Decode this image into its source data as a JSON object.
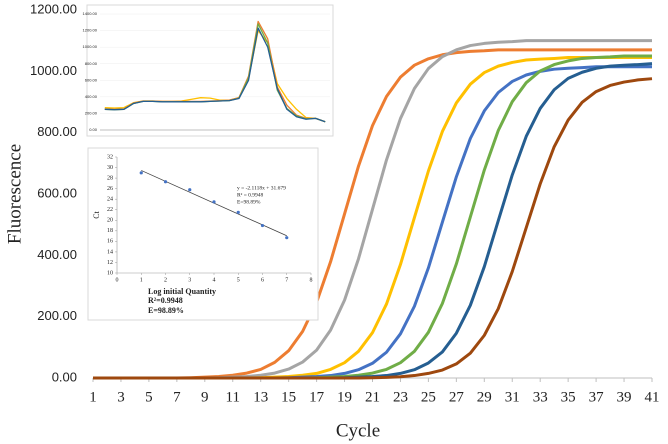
{
  "chart_data": [
    {
      "type": "line",
      "xlabel": "Cycle",
      "ylabel": "Fluorescence",
      "x": [
        1,
        2,
        3,
        4,
        5,
        6,
        7,
        8,
        9,
        10,
        11,
        12,
        13,
        14,
        15,
        16,
        17,
        18,
        19,
        20,
        21,
        22,
        23,
        24,
        25,
        26,
        27,
        28,
        29,
        30,
        31,
        32,
        33,
        34,
        35,
        36,
        37,
        38,
        39,
        40,
        41
      ],
      "xlim": [
        1,
        41
      ],
      "xticks": [
        1,
        3,
        5,
        7,
        9,
        11,
        13,
        15,
        17,
        19,
        21,
        23,
        25,
        27,
        29,
        31,
        33,
        35,
        37,
        39,
        41
      ],
      "ylim": [
        0,
        1200
      ],
      "yticks": [
        {
          "value": 0,
          "label": "0.00"
        },
        {
          "value": 200,
          "label": "200.00"
        },
        {
          "value": 400,
          "label": "400.00"
        },
        {
          "value": 600,
          "label": "600.00"
        },
        {
          "value": 800,
          "label": "800.00"
        },
        {
          "value": 1000,
          "label": "1000.00"
        },
        {
          "value": 1200,
          "label": "1200.00"
        }
      ],
      "series": [
        {
          "color": "#ed7d31",
          "values": [
            0,
            0,
            0,
            0,
            0,
            0,
            0,
            1,
            3,
            5,
            9,
            16,
            28,
            51,
            89,
            152,
            247,
            379,
            535,
            691,
            823,
            918,
            981,
            1020,
            1041,
            1054,
            1061,
            1065,
            1067,
            1070,
            1070,
            1070,
            1070,
            1070,
            1070,
            1070,
            1070,
            1070,
            1070,
            1070,
            1070
          ]
        },
        {
          "color": "#a5a5a5",
          "values": [
            0,
            0,
            0,
            0,
            0,
            0,
            0,
            0,
            0,
            1,
            3,
            5,
            9,
            16,
            29,
            52,
            91,
            156,
            254,
            389,
            550,
            711,
            846,
            944,
            1009,
            1048,
            1070,
            1084,
            1091,
            1095,
            1097,
            1100,
            1100,
            1100,
            1100,
            1100,
            1100,
            1100,
            1100,
            1100,
            1100
          ]
        },
        {
          "color": "#ffc000",
          "values": [
            0,
            0,
            0,
            0,
            0,
            0,
            0,
            0,
            0,
            0,
            0,
            0,
            1,
            3,
            5,
            9,
            15,
            28,
            50,
            87,
            148,
            241,
            370,
            523,
            675,
            804,
            897,
            958,
            996,
            1017,
            1029,
            1037,
            1040,
            1042,
            1045,
            1045,
            1045,
            1045,
            1045,
            1045,
            1045
          ]
        },
        {
          "color": "#4472c4",
          "values": [
            0,
            0,
            0,
            0,
            0,
            0,
            0,
            0,
            0,
            0,
            0,
            0,
            0,
            0,
            1,
            3,
            5,
            8,
            15,
            27,
            48,
            84,
            144,
            234,
            359,
            508,
            656,
            781,
            871,
            931,
            967,
            988,
            1000,
            1007,
            1010,
            1012,
            1015,
            1015,
            1015,
            1015,
            1015
          ]
        },
        {
          "color": "#70ad47",
          "values": [
            0,
            0,
            0,
            0,
            0,
            0,
            0,
            0,
            0,
            0,
            0,
            0,
            0,
            0,
            0,
            0,
            1,
            3,
            5,
            9,
            16,
            28,
            50,
            87,
            149,
            243,
            372,
            525,
            678,
            807,
            901,
            963,
            1001,
            1022,
            1034,
            1042,
            1045,
            1047,
            1050,
            1050,
            1050
          ]
        },
        {
          "color": "#255e91",
          "values": [
            0,
            0,
            0,
            0,
            0,
            0,
            0,
            0,
            0,
            0,
            0,
            0,
            0,
            0,
            0,
            0,
            0,
            0,
            1,
            3,
            5,
            8,
            15,
            27,
            49,
            85,
            146,
            237,
            363,
            513,
            662,
            788,
            879,
            940,
            977,
            997,
            1010,
            1017,
            1020,
            1022,
            1025
          ]
        },
        {
          "color": "#9e480e",
          "values": [
            0,
            0,
            0,
            0,
            0,
            0,
            0,
            0,
            0,
            0,
            0,
            0,
            0,
            0,
            0,
            0,
            0,
            0,
            0,
            0,
            1,
            2,
            4,
            8,
            15,
            26,
            46,
            81,
            139,
            226,
            347,
            490,
            633,
            754,
            841,
            899,
            934,
            954,
            965,
            972,
            976
          ]
        }
      ]
    },
    {
      "type": "line",
      "categories": [
        null,
        null,
        null,
        null,
        null,
        null,
        null,
        null,
        null,
        null,
        null,
        null,
        null,
        null,
        null,
        null,
        null,
        null,
        null,
        null,
        null,
        null,
        null,
        null
      ],
      "ylim": [
        0,
        1400
      ],
      "yticks": [
        {
          "value": 0,
          "label": "0.00"
        },
        {
          "value": 200,
          "label": "200.00"
        },
        {
          "value": 400,
          "label": "400.00"
        },
        {
          "value": 600,
          "label": "600.00"
        },
        {
          "value": 800,
          "label": "800.00"
        },
        {
          "value": 1000,
          "label": "1000.00"
        },
        {
          "value": 1200,
          "label": "1200.00"
        },
        {
          "value": 1400,
          "label": "1400.00"
        }
      ],
      "series": [
        {
          "color": "#ffc000",
          "values": [
            270,
            265,
            270,
            330,
            350,
            350,
            345,
            345,
            350,
            370,
            390,
            385,
            360,
            360,
            390,
            620,
            1200,
            1050,
            560,
            380,
            250,
            150,
            140,
            100
          ]
        },
        {
          "color": "#ed7d31",
          "values": [
            255,
            250,
            255,
            325,
            350,
            350,
            345,
            345,
            345,
            345,
            345,
            350,
            355,
            360,
            390,
            650,
            1310,
            1100,
            520,
            300,
            180,
            140,
            140,
            100
          ]
        },
        {
          "color": "#70ad47",
          "values": [
            250,
            245,
            250,
            320,
            345,
            345,
            340,
            340,
            340,
            340,
            340,
            345,
            350,
            355,
            385,
            630,
            1280,
            1050,
            480,
            260,
            170,
            135,
            140,
            100
          ]
        },
        {
          "color": "#255e91",
          "values": [
            250,
            245,
            250,
            320,
            345,
            345,
            340,
            340,
            340,
            340,
            340,
            345,
            350,
            355,
            380,
            600,
            1230,
            1000,
            500,
            250,
            160,
            130,
            140,
            100
          ]
        }
      ]
    },
    {
      "type": "scatter",
      "ylabel": "Ct",
      "xlabel": "Log initial Quantity",
      "annotations": [
        "y = -2.1118x + 31.679",
        "R² = 0.9948",
        "E=98.89%"
      ],
      "notes": [
        "R²=0.9948",
        "E=98.89%"
      ],
      "x": [
        1,
        2,
        3,
        4,
        5,
        6,
        7
      ],
      "y": [
        29,
        27.3,
        25.8,
        23.5,
        21.5,
        19,
        16.7
      ],
      "color": "#4472c4",
      "xlim": [
        0,
        8
      ],
      "xticks": [
        0,
        1,
        2,
        3,
        4,
        5,
        6,
        7,
        8
      ],
      "ylim": [
        10,
        32
      ],
      "yticks": [
        10,
        12,
        14,
        16,
        18,
        20,
        22,
        24,
        26,
        28,
        30,
        32
      ]
    }
  ]
}
